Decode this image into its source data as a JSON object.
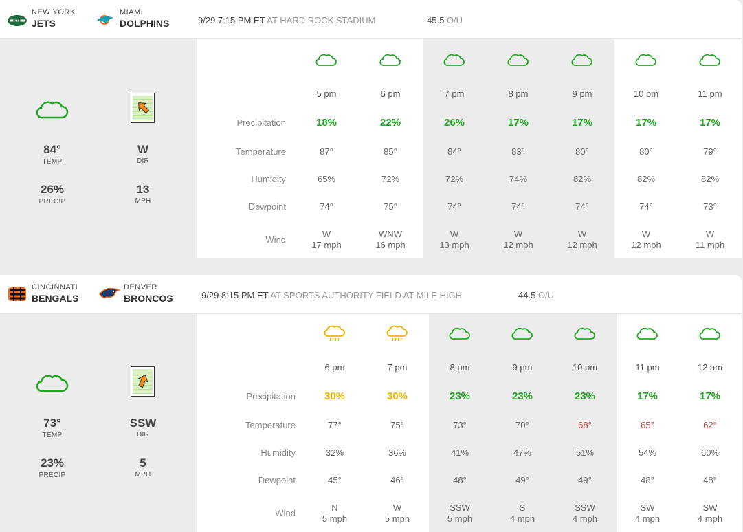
{
  "colors": {
    "green": "#22a722",
    "orange": "#f0b400",
    "cold": "#d04040",
    "panel": "#ececec"
  },
  "row_labels": [
    "Precipitation",
    "Temperature",
    "Humidity",
    "Dewpoint",
    "Wind"
  ],
  "games": [
    {
      "away": {
        "city": "NEW YORK",
        "name": "JETS",
        "logo": "jets-logo"
      },
      "home": {
        "city": "MIAMI",
        "name": "DOLPHINS",
        "logo": "dolphins-logo"
      },
      "datetime": "9/29 7:15 PM ET",
      "venue": "AT HARD ROCK STADIUM",
      "ou_value": "45.5",
      "ou_label": "O/U",
      "summary": {
        "icon": "cloud-icon",
        "temp": "84°",
        "temp_label": "TEMP",
        "precip": "26%",
        "precip_label": "PRECIP",
        "dir": "W",
        "dir_label": "DIR",
        "speed": "13",
        "speed_label": "MPH",
        "arrow_direction": "W"
      },
      "hours": [
        {
          "time": "5 pm",
          "icon": "cloud-icon",
          "precip": "18%",
          "temp": "87°",
          "humidity": "65%",
          "dewpoint": "74°",
          "wind_dir": "W",
          "wind_speed": "17 mph"
        },
        {
          "time": "6 pm",
          "icon": "cloud-icon",
          "precip": "22%",
          "temp": "85°",
          "humidity": "72%",
          "dewpoint": "75°",
          "wind_dir": "WNW",
          "wind_speed": "16 mph"
        },
        {
          "time": "7 pm",
          "icon": "cloud-icon",
          "precip": "26%",
          "temp": "84°",
          "humidity": "72%",
          "dewpoint": "74°",
          "wind_dir": "W",
          "wind_speed": "13 mph"
        },
        {
          "time": "8 pm",
          "icon": "cloud-icon",
          "precip": "17%",
          "temp": "83°",
          "humidity": "74%",
          "dewpoint": "74°",
          "wind_dir": "W",
          "wind_speed": "12 mph"
        },
        {
          "time": "9 pm",
          "icon": "cloud-icon",
          "precip": "17%",
          "temp": "80°",
          "humidity": "82%",
          "dewpoint": "74°",
          "wind_dir": "W",
          "wind_speed": "12 mph"
        },
        {
          "time": "10 pm",
          "icon": "cloud-icon",
          "precip": "17%",
          "temp": "80°",
          "humidity": "82%",
          "dewpoint": "74°",
          "wind_dir": "W",
          "wind_speed": "12 mph"
        },
        {
          "time": "11 pm",
          "icon": "cloud-icon",
          "precip": "17%",
          "temp": "79°",
          "humidity": "82%",
          "dewpoint": "73°",
          "wind_dir": "W",
          "wind_speed": "11 mph"
        }
      ]
    },
    {
      "away": {
        "city": "CINCINNATI",
        "name": "BENGALS",
        "logo": "bengals-logo"
      },
      "home": {
        "city": "DENVER",
        "name": "BRONCOS",
        "logo": "broncos-logo"
      },
      "datetime": "9/29 8:15 PM ET",
      "venue": "AT SPORTS AUTHORITY FIELD AT MILE HIGH",
      "ou_value": "44.5",
      "ou_label": "O/U",
      "summary": {
        "icon": "cloud-icon",
        "temp": "73°",
        "temp_label": "TEMP",
        "precip": "23%",
        "precip_label": "PRECIP",
        "dir": "SSW",
        "dir_label": "DIR",
        "speed": "5",
        "speed_label": "MPH",
        "arrow_direction": "SSW"
      },
      "hours": [
        {
          "time": "6 pm",
          "icon": "rain-cloud-icon",
          "precip": "30%",
          "temp": "77°",
          "humidity": "32%",
          "dewpoint": "45°",
          "wind_dir": "N",
          "wind_speed": "5 mph"
        },
        {
          "time": "7 pm",
          "icon": "rain-cloud-icon",
          "precip": "30%",
          "temp": "75°",
          "humidity": "36%",
          "dewpoint": "46°",
          "wind_dir": "W",
          "wind_speed": "5 mph"
        },
        {
          "time": "8 pm",
          "icon": "cloud-icon",
          "precip": "23%",
          "temp": "73°",
          "humidity": "41%",
          "dewpoint": "48°",
          "wind_dir": "SSW",
          "wind_speed": "5 mph"
        },
        {
          "time": "9 pm",
          "icon": "cloud-icon",
          "precip": "23%",
          "temp": "70°",
          "humidity": "47%",
          "dewpoint": "49°",
          "wind_dir": "S",
          "wind_speed": "4 mph"
        },
        {
          "time": "10 pm",
          "icon": "cloud-icon",
          "precip": "23%",
          "temp": "68°",
          "humidity": "51%",
          "dewpoint": "49°",
          "wind_dir": "SSW",
          "wind_speed": "4 mph"
        },
        {
          "time": "11 pm",
          "icon": "cloud-icon",
          "precip": "17%",
          "temp": "65°",
          "humidity": "54%",
          "dewpoint": "48°",
          "wind_dir": "SW",
          "wind_speed": "4 mph"
        },
        {
          "time": "12 am",
          "icon": "cloud-icon",
          "precip": "17%",
          "temp": "62°",
          "humidity": "60%",
          "dewpoint": "48°",
          "wind_dir": "SW",
          "wind_speed": "4 mph"
        }
      ]
    }
  ]
}
